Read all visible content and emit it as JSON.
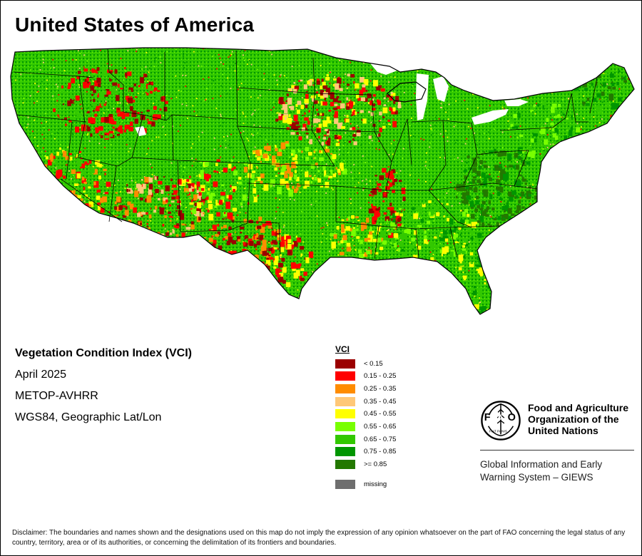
{
  "title": "United States of America",
  "map": {
    "region": "Contiguous United States",
    "colors": {
      "land_base": "#46b51e",
      "vci_lt_015": "#9b0000",
      "vci_015_025": "#ff0000",
      "vci_025_035": "#ff8c00",
      "vci_035_045": "#ffc878",
      "vci_045_055": "#ffff00",
      "vci_055_065": "#78ff00",
      "vci_065_075": "#32c800",
      "vci_075_085": "#009600",
      "vci_gte_085": "#237800",
      "missing": "#6e6e6e",
      "boundaries": "#000000"
    }
  },
  "info": {
    "index_name": "Vegetation Condition Index (VCI)",
    "period": "April 2025",
    "sensor": "METOP-AVHRR",
    "projection": "WGS84, Geographic Lat/Lon"
  },
  "legend": {
    "heading": "VCI",
    "items": [
      {
        "label": "< 0.15",
        "color": "#9b0000"
      },
      {
        "label": "0.15 - 0.25",
        "color": "#ff0000"
      },
      {
        "label": "0.25 - 0.35",
        "color": "#ff8c00"
      },
      {
        "label": "0.35 - 0.45",
        "color": "#ffc878"
      },
      {
        "label": "0.45 - 0.55",
        "color": "#ffff00"
      },
      {
        "label": "0.55 - 0.65",
        "color": "#78ff00"
      },
      {
        "label": "0.65 - 0.75",
        "color": "#32c800"
      },
      {
        "label": "0.75 - 0.85",
        "color": "#009600"
      },
      {
        "label": ">= 0.85",
        "color": "#237800"
      }
    ],
    "missing": {
      "label": "missing",
      "color": "#6e6e6e"
    }
  },
  "logo": {
    "emblem_letters": "FAO",
    "emblem_motto": "FIAT PANIS",
    "org_line1": "Food and Agriculture",
    "org_line2": "Organization of the",
    "org_line3": "United Nations",
    "system_line1": "Global Information and Early",
    "system_line2": "Warning System – GIEWS"
  },
  "disclaimer": "Disclaimer: The boundaries and names shown and the designations used on this map do not imply the expression of any opinion whatsoever on the part of FAO concerning the legal status of any country, territory, area or of its authorities, or concerning the delimitation of its frontiers and boundaries."
}
